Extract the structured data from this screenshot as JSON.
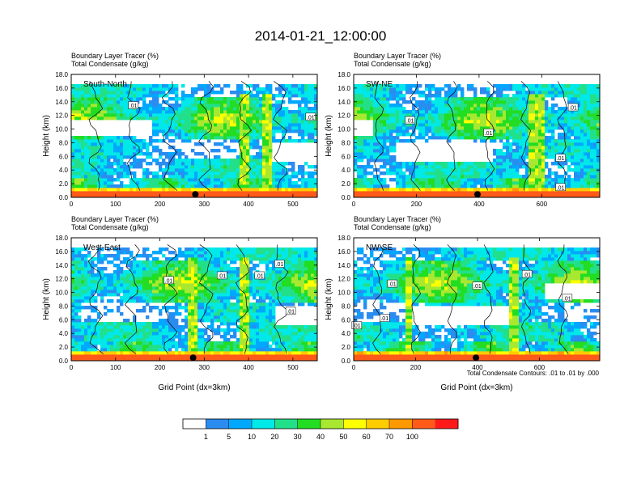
{
  "title": "2014-01-21_12:00:00",
  "colors": {
    "scale": [
      "#ffffff",
      "#2b8cf0",
      "#00a8ff",
      "#00e8e8",
      "#22e08a",
      "#22dd22",
      "#a8e830",
      "#ffff00",
      "#ffcc00",
      "#ff9900",
      "#ff5a1a",
      "#ff1a1a"
    ],
    "contour": "#000000",
    "marker": "#000000"
  },
  "colorbar": {
    "labels": [
      "1",
      "5",
      "10",
      "20",
      "30",
      "40",
      "50",
      "60",
      "70",
      "100"
    ]
  },
  "contour_note": "Total Condensate Contours: .01 to .01 by .000",
  "chart_data": [
    {
      "type": "heatmap",
      "panel": "South-North",
      "header_line1": "Boundary Layer Tracer   (%)",
      "header_line2": "Total Condensate   (g/kg)",
      "ylabel": "Height (km)",
      "xlabel": "",
      "xlim": [
        0,
        555
      ],
      "ylim": [
        0,
        18
      ],
      "xticks": [
        0,
        100,
        200,
        300,
        400,
        500
      ],
      "xtick_labels": [
        "0",
        "100",
        "200",
        "300",
        "400",
        "500"
      ],
      "yticks": [
        0,
        2,
        4,
        6,
        8,
        10,
        12,
        14,
        16,
        18
      ],
      "ytick_labels": [
        "0.0",
        "2.0",
        "4.0",
        "6.0",
        "8.0",
        "10.0",
        "12.0",
        "14.0",
        "16.0",
        "18.0"
      ],
      "marker_x": 280,
      "contour_labels": [
        {
          "text": ".01",
          "x": 140,
          "y": 13.5
        },
        {
          "text": ".01",
          "x": 540,
          "y": 11.8
        }
      ]
    },
    {
      "type": "heatmap",
      "panel": "SW-NE",
      "header_line1": "Boundary Layer Tracer   (%)",
      "header_line2": "Total Condensate   (g/kg)",
      "ylabel": "Height (km)",
      "xlabel": "",
      "xlim": [
        0,
        785
      ],
      "ylim": [
        0,
        18
      ],
      "xticks": [
        0,
        200,
        400,
        600
      ],
      "xtick_labels": [
        "0",
        "200",
        "400",
        "600"
      ],
      "yticks": [
        0,
        2,
        4,
        6,
        8,
        10,
        12,
        14,
        16,
        18
      ],
      "ytick_labels": [
        "0.0",
        "2.0",
        "4.0",
        "6.0",
        "8.0",
        "10.0",
        "12.0",
        "14.0",
        "16.0",
        "18.0"
      ],
      "marker_x": 395,
      "contour_labels": [
        {
          "text": ".01",
          "x": 180,
          "y": 11.3
        },
        {
          "text": ".01",
          "x": 430,
          "y": 9.5
        },
        {
          "text": ".01",
          "x": 660,
          "y": 5.8
        },
        {
          "text": ".01",
          "x": 700,
          "y": 13.2
        },
        {
          "text": ".01",
          "x": 660,
          "y": 1.5
        }
      ]
    },
    {
      "type": "heatmap",
      "panel": "West-East",
      "header_line1": "Boundary Layer Tracer   (%)",
      "header_line2": "Total Condensate   (g/kg)",
      "ylabel": "Height (km)",
      "xlabel": "Grid Point (dx=3km)",
      "xlim": [
        0,
        555
      ],
      "ylim": [
        0,
        18
      ],
      "xticks": [
        0,
        100,
        200,
        300,
        400,
        500
      ],
      "xtick_labels": [
        "0",
        "100",
        "200",
        "300",
        "400",
        "500"
      ],
      "yticks": [
        0,
        2,
        4,
        6,
        8,
        10,
        12,
        14,
        16,
        18
      ],
      "ytick_labels": [
        "0.0",
        "2.0",
        "4.0",
        "6.0",
        "8.0",
        "10.0",
        "12.0",
        "14.0",
        "16.0",
        "18.0"
      ],
      "marker_x": 275,
      "contour_labels": [
        {
          "text": ".01",
          "x": 220,
          "y": 11.8
        },
        {
          "text": ".01",
          "x": 340,
          "y": 12.5
        },
        {
          "text": ".01",
          "x": 425,
          "y": 12.5
        },
        {
          "text": ".01",
          "x": 470,
          "y": 14.2
        },
        {
          "text": ".01",
          "x": 495,
          "y": 7.3
        }
      ]
    },
    {
      "type": "heatmap",
      "panel": "NW-SE",
      "header_line1": "Boundary Layer Tracer   (%)",
      "header_line2": "Total Condensate   (g/kg)",
      "ylabel": "Height (km)",
      "xlabel": "Grid Point (dx=3km)",
      "xlim": [
        0,
        795
      ],
      "ylim": [
        0,
        18
      ],
      "xticks": [
        0,
        200,
        400,
        600
      ],
      "xtick_labels": [
        "0",
        "200",
        "400",
        "600"
      ],
      "yticks": [
        0,
        2,
        4,
        6,
        8,
        10,
        12,
        14,
        16,
        18
      ],
      "ytick_labels": [
        "0.0",
        "2.0",
        "4.0",
        "6.0",
        "8.0",
        "10.0",
        "12.0",
        "14.0",
        "16.0",
        "18.0"
      ],
      "marker_x": 395,
      "contour_labels": [
        {
          "text": ".01",
          "x": 125,
          "y": 11.3
        },
        {
          "text": ".01",
          "x": 100,
          "y": 6.3
        },
        {
          "text": ".01",
          "x": 400,
          "y": 11.0
        },
        {
          "text": ".01",
          "x": 560,
          "y": 12.7
        },
        {
          "text": ".01",
          "x": 690,
          "y": 9.2
        },
        {
          "text": ".01",
          "x": 10,
          "y": 5.2
        }
      ]
    }
  ]
}
